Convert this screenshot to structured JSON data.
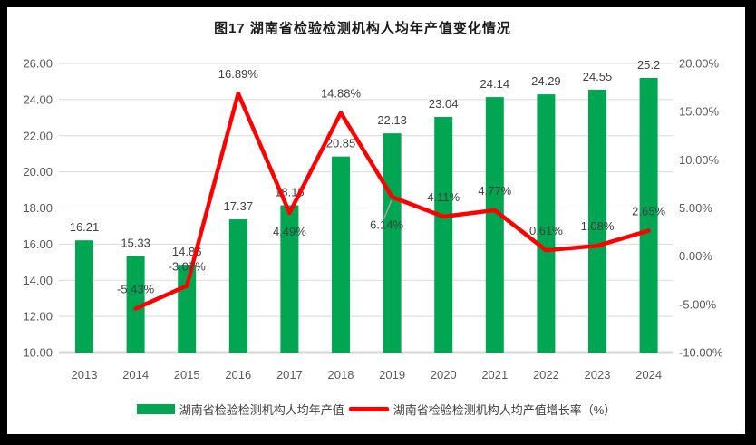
{
  "title": "图17 湖南省检验检测机构人均年产值变化情况",
  "chart_data": {
    "type": "combo-bar-line",
    "title": "图17 湖南省检验检测机构人均年产值变化情况",
    "categories": [
      "2013",
      "2014",
      "2015",
      "2016",
      "2017",
      "2018",
      "2019",
      "2020",
      "2021",
      "2022",
      "2023",
      "2024"
    ],
    "series": [
      {
        "name": "湖南省检验检测机构人均年产值",
        "type": "bar",
        "axis": "left",
        "color": "#00A651",
        "values": [
          16.21,
          15.33,
          14.86,
          17.37,
          18.15,
          20.85,
          22.13,
          23.04,
          24.14,
          24.29,
          24.55,
          25.2
        ],
        "data_labels": [
          "16.21",
          "15.33",
          "14.86",
          "17.37",
          "18.15",
          "20.85",
          "22.13",
          "23.04",
          "24.14",
          "24.29",
          "24.55",
          "25.2"
        ]
      },
      {
        "name": "湖南省检验检测机构人均产值增长率（%）",
        "type": "line",
        "axis": "right",
        "color": "#FF0000",
        "values": [
          null,
          -5.43,
          -3.07,
          16.89,
          4.49,
          14.88,
          6.14,
          4.11,
          4.77,
          0.61,
          1.08,
          2.65
        ],
        "data_labels": [
          null,
          "-5.43%",
          "-3.07%",
          "16.89%",
          "4.49%",
          "14.88%",
          "6.14%",
          "4.11%",
          "4.77%",
          "0.61%",
          "1.08%",
          "2.65%"
        ],
        "label_placement": [
          null,
          "above",
          "above",
          "above",
          "below",
          "above",
          "below-leader",
          "above",
          "above",
          "above",
          "above",
          "above"
        ]
      }
    ],
    "left_axis": {
      "min": 10,
      "max": 26,
      "step": 2,
      "tick_labels": [
        "26.00",
        "24.00",
        "22.00",
        "20.00",
        "18.00",
        "16.00",
        "14.00",
        "12.00",
        "10.00"
      ]
    },
    "right_axis": {
      "min": -10,
      "max": 20,
      "step": 5,
      "tick_labels": [
        "20.00%",
        "15.00%",
        "10.00%",
        "5.00%",
        "0.00%",
        "-5.00%",
        "-10.00%"
      ]
    },
    "grid": true,
    "legend_position": "bottom"
  },
  "legend": {
    "items": [
      {
        "label": "湖南省检验检测机构人均年产值",
        "swatch": "bar",
        "color": "#00A651"
      },
      {
        "label": "湖南省检验检测机构人均产值增长率（%）",
        "swatch": "line",
        "color": "#FF0000"
      }
    ]
  },
  "colors": {
    "frame": "#000000",
    "background": "#FFFFFF",
    "gridline": "#D9D9D9",
    "baseline": "#D6D6D6",
    "axis_text": "#595959",
    "label_text": "#404040",
    "title_text": "#1A1A1A",
    "leader_line": "#A6A6A6"
  }
}
